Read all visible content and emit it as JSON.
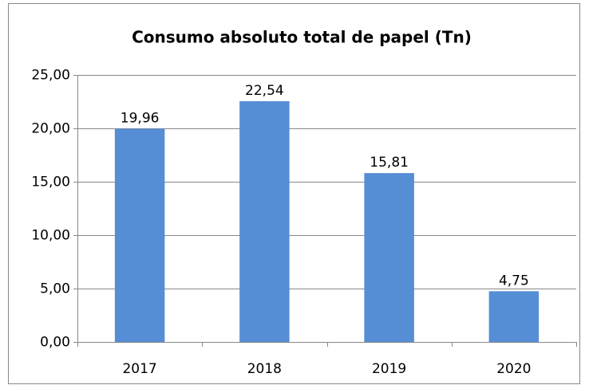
{
  "chart_data": {
    "type": "bar",
    "title": "Consumo absoluto total de papel (Tn)",
    "categories": [
      "2017",
      "2018",
      "2019",
      "2020"
    ],
    "values": [
      19.96,
      22.54,
      15.81,
      4.75
    ],
    "value_labels": [
      "19,96",
      "22,54",
      "15,81",
      "4,75"
    ],
    "color": "#558ed5",
    "ylim": [
      0,
      25
    ],
    "yticks": [
      {
        "value": 0,
        "label": "0,00"
      },
      {
        "value": 5,
        "label": "5,00"
      },
      {
        "value": 10,
        "label": "10,00"
      },
      {
        "value": 15,
        "label": "15,00"
      },
      {
        "value": 20,
        "label": "20,00"
      },
      {
        "value": 25,
        "label": "25,00"
      }
    ],
    "grid": true
  }
}
